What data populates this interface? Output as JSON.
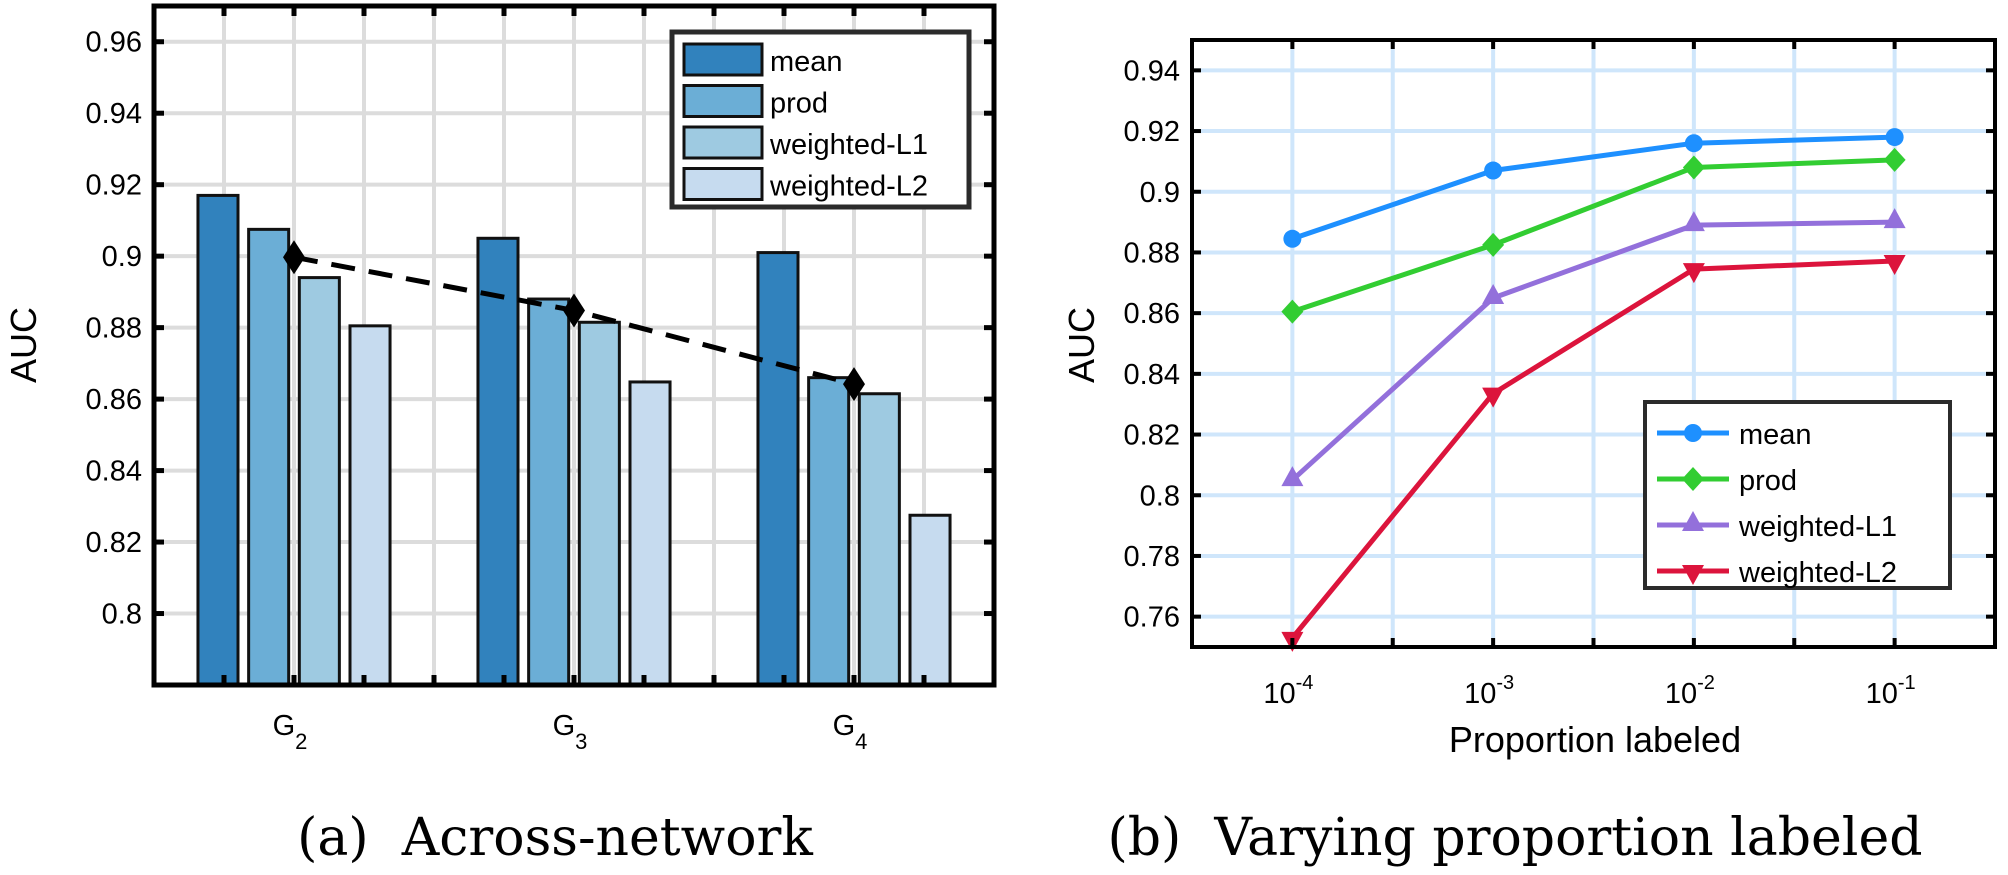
{
  "chart_data": [
    {
      "type": "bar",
      "caption": "(a)  Across-network",
      "categories": [
        "G",
        "G",
        "G"
      ],
      "category_subscripts": [
        "2",
        "3",
        "4"
      ],
      "xlabel": "",
      "ylabel": "AUC",
      "ylim": [
        0.78,
        0.97
      ],
      "yticks": [
        0.8,
        0.82,
        0.84,
        0.86,
        0.88,
        0.9,
        0.92,
        0.94,
        0.96
      ],
      "ytick_labels": [
        "0.8",
        "0.82",
        "0.84",
        "0.86",
        "0.88",
        "0.9",
        "0.92",
        "0.94",
        "0.96"
      ],
      "grid": true,
      "legend_position": "top-right",
      "series": [
        {
          "name": "mean",
          "color": "#3182BD",
          "values": [
            0.917,
            0.905,
            0.901
          ]
        },
        {
          "name": "prod",
          "color": "#6BAED6",
          "values": [
            0.9075,
            0.888,
            0.866
          ]
        },
        {
          "name": "weighted-L1",
          "color": "#9ECAE1",
          "values": [
            0.894,
            0.8815,
            0.8615
          ]
        },
        {
          "name": "weighted-L2",
          "color": "#C6DBEF",
          "values": [
            0.8805,
            0.8648,
            0.8275
          ]
        }
      ],
      "overlay_line": {
        "style": "dashed",
        "marker": "diamond",
        "color": "#000000",
        "values": [
          0.8997,
          0.8848,
          0.8642
        ]
      }
    },
    {
      "type": "line",
      "caption": "(b)  Varying proportion labeled",
      "x": [
        0.0001,
        0.001,
        0.01,
        0.1
      ],
      "x_exponents": [
        -4,
        -3,
        -2,
        -1
      ],
      "xscale": "log",
      "xlim_log10": [
        -4.5,
        -0.5
      ],
      "xlabel": "Proportion labeled",
      "ylabel": "AUC",
      "ylim": [
        0.75,
        0.95
      ],
      "yticks": [
        0.76,
        0.78,
        0.8,
        0.82,
        0.84,
        0.86,
        0.88,
        0.9,
        0.92,
        0.94
      ],
      "ytick_labels": [
        "0.76",
        "0.78",
        "0.8",
        "0.82",
        "0.84",
        "0.86",
        "0.88",
        "0.9",
        "0.92",
        "0.94"
      ],
      "grid": true,
      "legend_position": "bottom-right",
      "series": [
        {
          "name": "mean",
          "color": "#1E90FF",
          "marker": "circle",
          "values": [
            0.8845,
            0.907,
            0.916,
            0.918
          ]
        },
        {
          "name": "prod",
          "color": "#32CD32",
          "marker": "diamond",
          "values": [
            0.8605,
            0.8825,
            0.908,
            0.9105
          ]
        },
        {
          "name": "weighted-L1",
          "color": "#9370DB",
          "marker": "triangle-up",
          "values": [
            0.805,
            0.865,
            0.889,
            0.89
          ]
        },
        {
          "name": "weighted-L2",
          "color": "#DC143C",
          "marker": "triangle-down",
          "values": [
            0.753,
            0.8335,
            0.8745,
            0.8772
          ]
        }
      ]
    }
  ]
}
